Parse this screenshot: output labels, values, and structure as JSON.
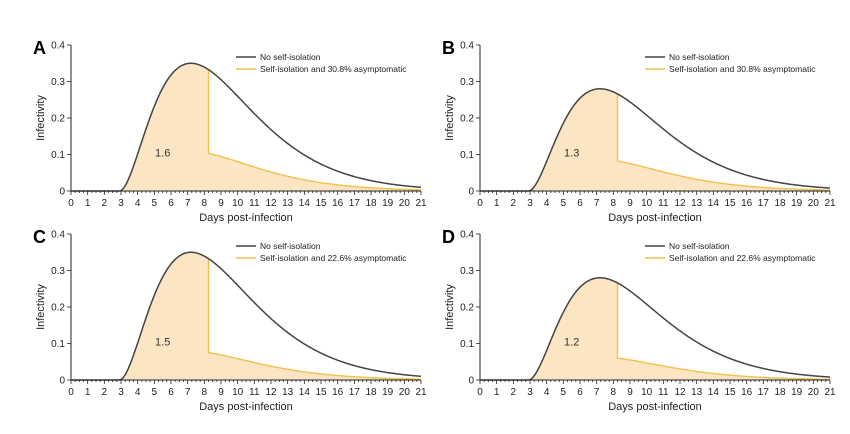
{
  "chart_data": [
    {
      "panel": "A",
      "type": "area",
      "xlabel": "Days post-infection",
      "ylabel": "Infectivity",
      "xlim": [
        0,
        21
      ],
      "ylim": [
        0,
        0.4
      ],
      "x_ticks": [
        0,
        1,
        2,
        3,
        4,
        5,
        6,
        7,
        8,
        9,
        10,
        11,
        12,
        13,
        14,
        15,
        16,
        17,
        18,
        19,
        20,
        21
      ],
      "y_ticks": [
        0,
        0.1,
        0.2,
        0.3,
        0.4
      ],
      "legend_position": "top-right",
      "series": [
        {
          "name": "No self-isolation",
          "color": "#444444",
          "peak": 0.35,
          "peak_day": 7.2
        },
        {
          "name": "Self-isolation and 30.8% asymptomatic",
          "color": "#f0c050",
          "isolation_day": 8.25,
          "value_after_isolation": 0.103
        }
      ],
      "area_label": "1.6"
    },
    {
      "panel": "B",
      "type": "area",
      "xlabel": "Days post-infection",
      "ylabel": "Infectivity",
      "xlim": [
        0,
        21
      ],
      "ylim": [
        0,
        0.4
      ],
      "x_ticks": [
        0,
        1,
        2,
        3,
        4,
        5,
        6,
        7,
        8,
        9,
        10,
        11,
        12,
        13,
        14,
        15,
        16,
        17,
        18,
        19,
        20,
        21
      ],
      "y_ticks": [
        0,
        0.1,
        0.2,
        0.3,
        0.4
      ],
      "legend_position": "top-right",
      "series": [
        {
          "name": "No self-isolation",
          "color": "#444444",
          "peak": 0.28,
          "peak_day": 7.2
        },
        {
          "name": "Self-isolation and 30.8% asymptomatic",
          "color": "#f0c050",
          "isolation_day": 8.25,
          "value_after_isolation": 0.082
        }
      ],
      "area_label": "1.3"
    },
    {
      "panel": "C",
      "type": "area",
      "xlabel": "Days post-infection",
      "ylabel": "Infectivity",
      "xlim": [
        0,
        21
      ],
      "ylim": [
        0,
        0.4
      ],
      "x_ticks": [
        0,
        1,
        2,
        3,
        4,
        5,
        6,
        7,
        8,
        9,
        10,
        11,
        12,
        13,
        14,
        15,
        16,
        17,
        18,
        19,
        20,
        21
      ],
      "y_ticks": [
        0,
        0.1,
        0.2,
        0.3,
        0.4
      ],
      "legend_position": "top-right",
      "series": [
        {
          "name": "No self-isolation",
          "color": "#444444",
          "peak": 0.35,
          "peak_day": 7.2
        },
        {
          "name": "Self-isolation and 22.6% asymptomatic",
          "color": "#f0c050",
          "isolation_day": 8.25,
          "value_after_isolation": 0.075
        }
      ],
      "area_label": "1.5"
    },
    {
      "panel": "D",
      "type": "area",
      "xlabel": "Days post-infection",
      "ylabel": "Infectivity",
      "xlim": [
        0,
        21
      ],
      "ylim": [
        0,
        0.4
      ],
      "x_ticks": [
        0,
        1,
        2,
        3,
        4,
        5,
        6,
        7,
        8,
        9,
        10,
        11,
        12,
        13,
        14,
        15,
        16,
        17,
        18,
        19,
        20,
        21
      ],
      "y_ticks": [
        0,
        0.1,
        0.2,
        0.3,
        0.4
      ],
      "legend_position": "top-right",
      "series": [
        {
          "name": "No self-isolation",
          "color": "#444444",
          "peak": 0.28,
          "peak_day": 7.2
        },
        {
          "name": "Self-isolation and 22.6% asymptomatic",
          "color": "#f0c050",
          "isolation_day": 8.25,
          "value_after_isolation": 0.06
        }
      ],
      "area_label": "1.2"
    }
  ],
  "colors": {
    "fill": "#fbe5c2",
    "axis": "#222222"
  }
}
